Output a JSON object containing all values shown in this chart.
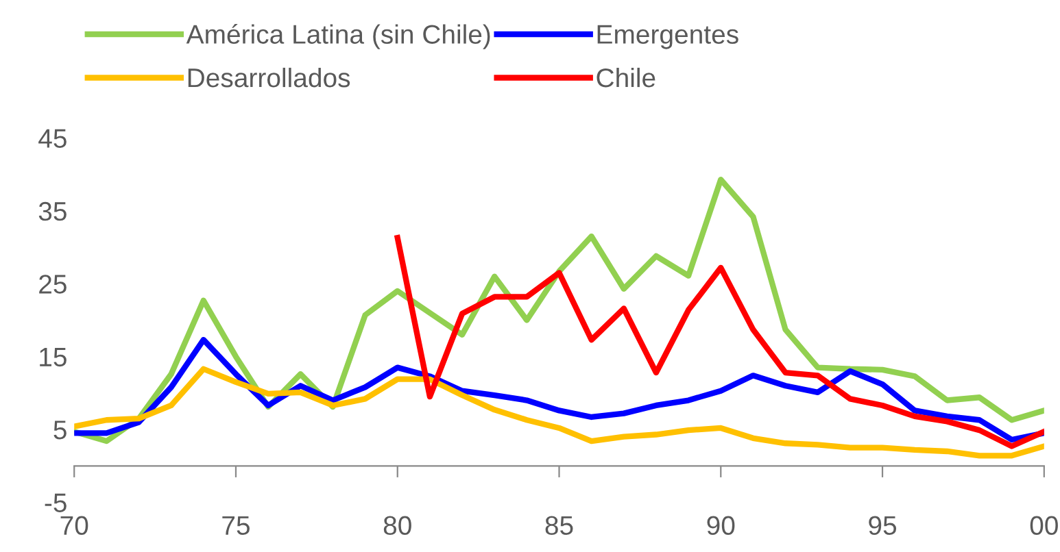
{
  "chart_data": {
    "type": "line",
    "x": [
      1970,
      1971,
      1972,
      1973,
      1974,
      1975,
      1976,
      1977,
      1978,
      1979,
      1980,
      1981,
      1982,
      1983,
      1984,
      1985,
      1986,
      1987,
      1988,
      1989,
      1990,
      1991,
      1992,
      1993,
      1994,
      1995,
      1996,
      1997,
      1998,
      1999,
      2000
    ],
    "series": [
      {
        "name": "América Latina (sin Chile)",
        "color": "#92d050",
        "values": [
          4.7,
          3.4,
          6.5,
          12.6,
          22.7,
          15,
          8.1,
          12.6,
          8.1,
          20.7,
          24,
          21,
          18,
          26,
          20,
          26.7,
          31.5,
          24.3,
          28.8,
          26.1,
          39.3,
          34.2,
          18.7,
          13.5,
          13.3,
          13.2,
          12.3,
          9,
          9.4,
          6.3,
          7.6
        ]
      },
      {
        "name": "Emergentes",
        "color": "#0000ff",
        "values": [
          4.5,
          4.5,
          6,
          10.8,
          17.3,
          12.6,
          8.3,
          11,
          9,
          10.8,
          13.5,
          12.3,
          10.3,
          9.7,
          9,
          7.6,
          6.7,
          7.2,
          8.3,
          9,
          10.3,
          12.4,
          11,
          10.1,
          13,
          11.2,
          7.6,
          6.8,
          6.3,
          3.6,
          4.5
        ]
      },
      {
        "name": "Desarrollados",
        "color": "#ffc000",
        "values": [
          5.4,
          6.3,
          6.5,
          8.3,
          13.3,
          11.5,
          9.9,
          10.1,
          8.3,
          9.2,
          11.9,
          11.9,
          9.7,
          7.7,
          6.3,
          5.2,
          3.4,
          4,
          4.3,
          4.9,
          5.2,
          3.8,
          3.1,
          2.9,
          2.5,
          2.5,
          2.2,
          2,
          1.4,
          1.4,
          2.7
        ]
      },
      {
        "name": "Chile",
        "color": "#ff0000",
        "values": [
          null,
          null,
          null,
          null,
          null,
          null,
          null,
          null,
          null,
          null,
          31.3,
          9.5,
          20.9,
          23.2,
          23.2,
          26.5,
          17.3,
          21.6,
          12.8,
          21.4,
          27.2,
          18.7,
          12.8,
          12.4,
          9.2,
          8.3,
          6.8,
          6.1,
          4.9,
          2.7,
          4.7
        ]
      }
    ],
    "xlim": [
      1970,
      2000
    ],
    "xticks": [
      {
        "value": 1970,
        "label": "70"
      },
      {
        "value": 1975,
        "label": "75"
      },
      {
        "value": 1980,
        "label": "80"
      },
      {
        "value": 1985,
        "label": "85"
      },
      {
        "value": 1990,
        "label": "90"
      },
      {
        "value": 1995,
        "label": "95"
      },
      {
        "value": 2000,
        "label": "00"
      }
    ],
    "ylim": [
      -5,
      45
    ],
    "yticks": [
      -5,
      5,
      15,
      25,
      35,
      45
    ],
    "grid": false,
    "legend": "top",
    "marker": "none",
    "line_style": "solid"
  }
}
